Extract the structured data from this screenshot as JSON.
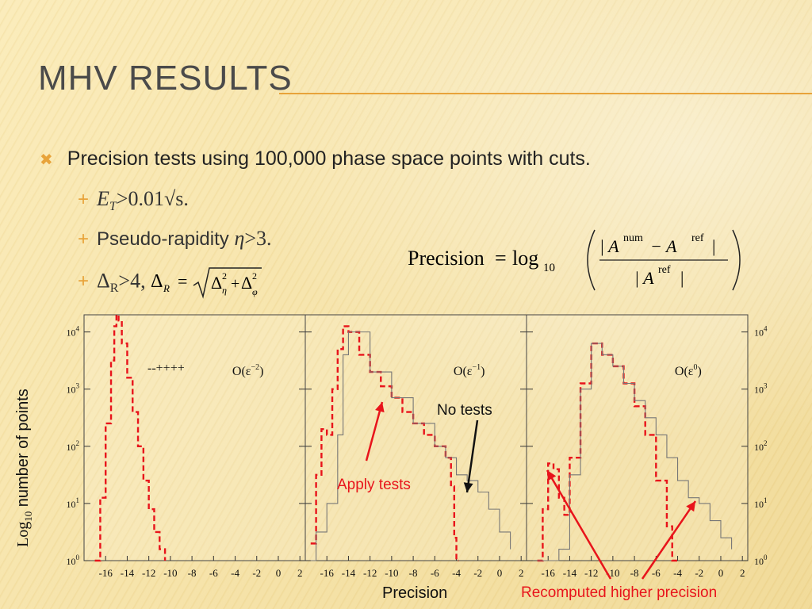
{
  "slide": {
    "title": "MHV Results",
    "bullet": "Precision tests using 100,000 phase space points with cuts.",
    "sub1": "E",
    "sub1_sub": "T",
    "sub1_rest": ">0.01√s.",
    "sub2_a": "Pseudo-rapidity ",
    "sub2_b": "η",
    "sub2_c": ">3.",
    "sub3_a": "Δ",
    "sub3_b": "R",
    "sub3_c": ">4, ",
    "formula_lhs": "Precision",
    "formula_log": "log",
    "formula_base": "10",
    "formula_num": "| A",
    "formula_num_sup1": "num",
    "formula_num_mid": " − A",
    "formula_num_sup2": "ref",
    "formula_num_end": " |",
    "formula_den": "| A",
    "formula_den_sup": "ref",
    "formula_den_end": " |",
    "ylabel_a": "Log",
    "ylabel_sub": "10",
    "ylabel_b": " number of points",
    "xlabel": "Precision",
    "note_recomputed": "Recomputed higher precision",
    "note_apply": "Apply tests",
    "note_notests": "No tests",
    "legend_key": "--++++",
    "colors": {
      "accent": "#e8a33a",
      "red": "#e8141b"
    }
  },
  "chart_data": [
    {
      "type": "line",
      "title": "O(ε^-2)",
      "panel_label": "O(ε",
      "panel_sup": "−2",
      "xticks": [
        "-16",
        "-14",
        "-12",
        "-10",
        "-8",
        "-6",
        "-4",
        "-2",
        "0",
        "2"
      ],
      "yticks": [
        "10^0",
        "10^1",
        "10^2",
        "10^3",
        "10^4"
      ],
      "xlim": [
        -18,
        2.5
      ],
      "ylog": true,
      "ylim_exp": [
        0,
        4.3
      ],
      "series": [
        {
          "values_x": [
            -17,
            -16.5,
            -16,
            -15.5,
            -15.2,
            -15,
            -14.8,
            -14.5,
            -14,
            -13.5,
            -13,
            -12.5,
            -12,
            -11.5,
            -11,
            -10.5
          ],
          "values_log10y": [
            0,
            1.1,
            2.4,
            3.5,
            4.1,
            4.3,
            4.2,
            3.8,
            3.2,
            2.6,
            2.0,
            1.4,
            0.9,
            0.5,
            0.2,
            0
          ]
        }
      ]
    },
    {
      "type": "line",
      "title": "O(ε^-1)",
      "panel_label": "O(ε",
      "panel_sup": "−1",
      "xticks": [
        "-16",
        "-14",
        "-12",
        "-10",
        "-8",
        "-6",
        "-4",
        "-2",
        "0",
        "2"
      ],
      "yticks": [],
      "xlim": [
        -18,
        2.5
      ],
      "ylog": true,
      "ylim_exp": [
        0,
        4.3
      ],
      "series": [
        {
          "name": "dashed",
          "values_x": [
            -17.5,
            -17,
            -16.5,
            -16,
            -15.5,
            -15,
            -14.5,
            -14,
            -13,
            -12,
            -11,
            -10,
            -9,
            -8,
            -7,
            -6,
            -5,
            -4.5,
            -4.2,
            -4,
            -3.8
          ],
          "values_log10y": [
            0.3,
            1.5,
            2.3,
            2.2,
            3.0,
            3.7,
            4.1,
            4.0,
            3.6,
            3.3,
            3.05,
            2.85,
            2.6,
            2.4,
            2.2,
            2.0,
            1.8,
            1.3,
            0.4,
            0,
            0
          ]
        },
        {
          "name": "solid",
          "values_x": [
            -17.5,
            -17,
            -16,
            -15,
            -14.5,
            -14,
            -12,
            -10,
            -8,
            -6,
            -5,
            -4,
            -3,
            -2,
            -1,
            0,
            1
          ],
          "values_log10y": [
            0,
            0.5,
            1.0,
            2.2,
            3.6,
            4.0,
            3.3,
            2.85,
            2.4,
            2.0,
            1.8,
            1.5,
            1.4,
            1.2,
            0.9,
            0.5,
            0.2
          ]
        }
      ]
    },
    {
      "type": "line",
      "title": "O(ε^0)",
      "panel_label": "O(ε",
      "panel_sup": "0",
      "xticks": [
        "-16",
        "-14",
        "-12",
        "-10",
        "-8",
        "-6",
        "-4",
        "-2",
        "0",
        "2"
      ],
      "yticks": [
        "10^0",
        "10^1",
        "10^2",
        "10^3",
        "10^4"
      ],
      "xlim": [
        -18,
        2.5
      ],
      "ylog": true,
      "ylim_exp": [
        0,
        4.3
      ],
      "series": [
        {
          "name": "dashed",
          "values_x": [
            -17,
            -16.5,
            -16,
            -15.5,
            -15,
            -14.5,
            -14,
            -13,
            -12,
            -11,
            -10,
            -9,
            -8,
            -7,
            -6,
            -5,
            -4.5,
            -4
          ],
          "values_log10y": [
            0,
            0.9,
            1.7,
            1.6,
            1.1,
            0.8,
            1.8,
            3.1,
            3.8,
            3.6,
            3.4,
            3.1,
            2.7,
            2.2,
            1.4,
            0.6,
            0,
            0
          ]
        },
        {
          "name": "solid",
          "values_x": [
            -17,
            -15,
            -14,
            -13,
            -12,
            -11,
            -10,
            -9,
            -8,
            -7,
            -6,
            -5,
            -4,
            -3,
            -2,
            -1,
            0,
            1
          ],
          "values_log10y": [
            0,
            0.2,
            1.5,
            3.0,
            3.8,
            3.6,
            3.4,
            3.1,
            2.8,
            2.5,
            2.2,
            1.8,
            1.4,
            1.1,
            1.0,
            0.7,
            0.4,
            0.2
          ]
        }
      ]
    }
  ]
}
